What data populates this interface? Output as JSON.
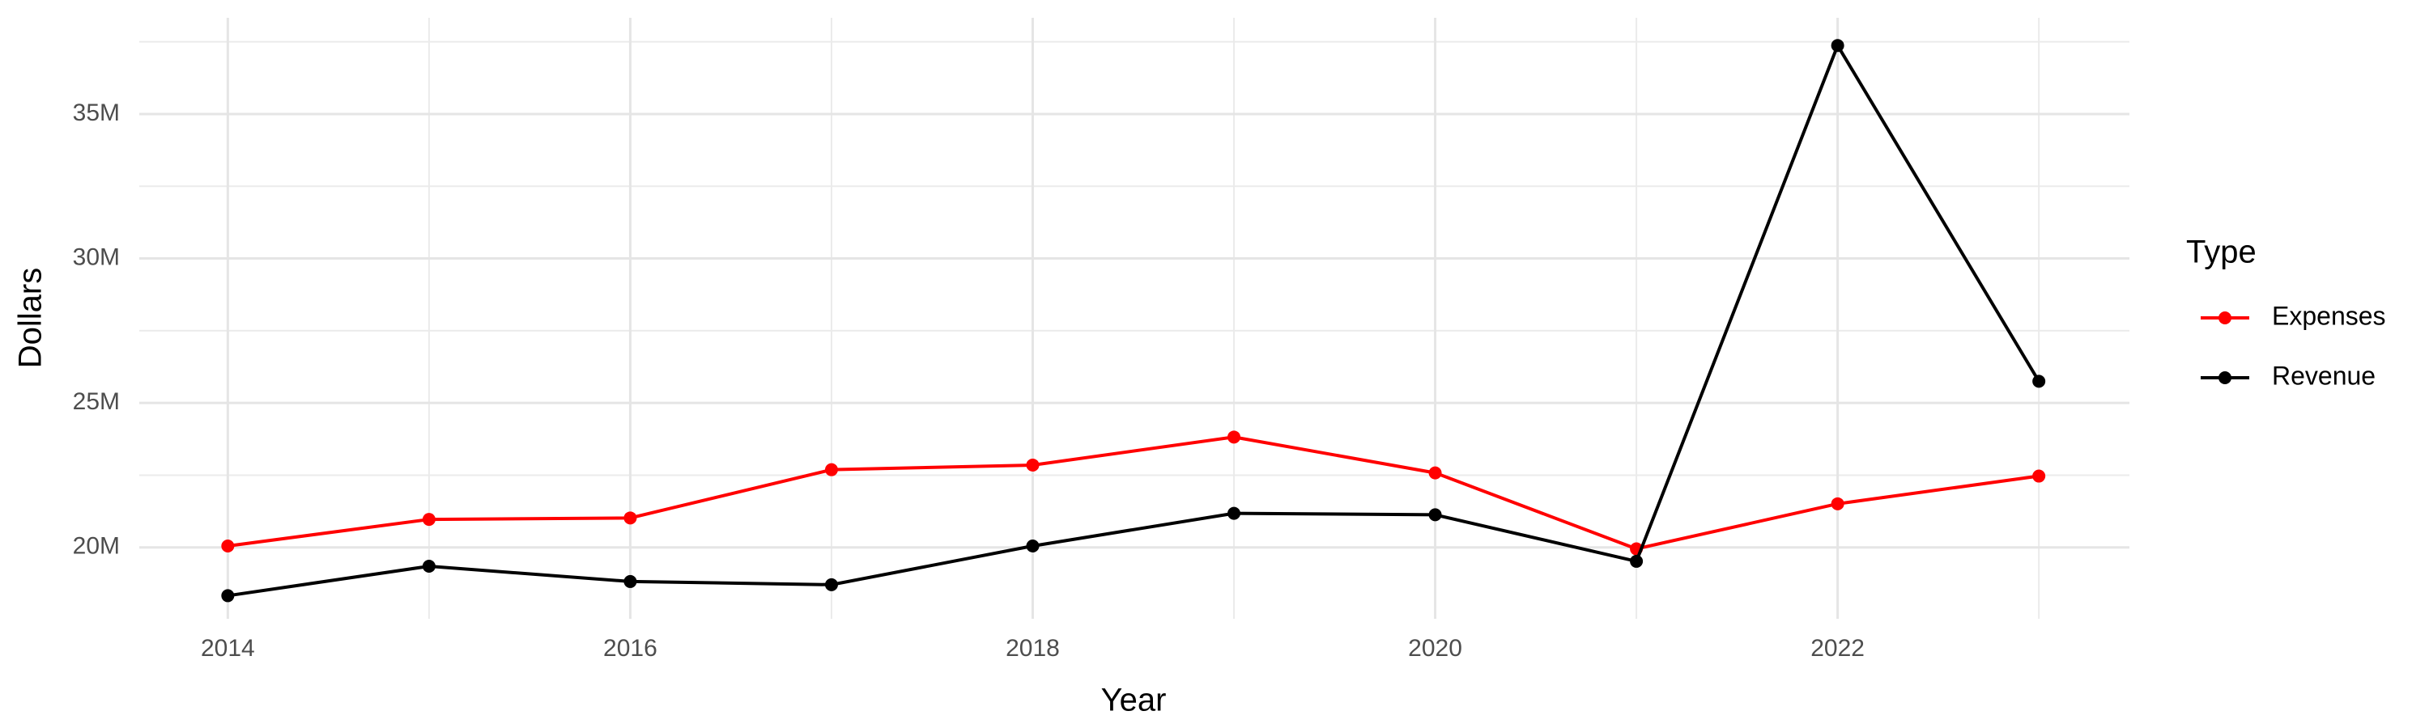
{
  "chart_data": {
    "type": "line",
    "x_label": "Year",
    "y_label": "Dollars",
    "legend_title": "Type",
    "x": [
      2014,
      2015,
      2016,
      2017,
      2018,
      2019,
      2020,
      2021,
      2022,
      2023
    ],
    "series": [
      {
        "name": "Expenses",
        "color": "#ff0000",
        "values": [
          20050000,
          20970000,
          21020000,
          22690000,
          22850000,
          23820000,
          22580000,
          19950000,
          21510000,
          22470000
        ]
      },
      {
        "name": "Revenue",
        "color": "#000000",
        "values": [
          18330000,
          19350000,
          18820000,
          18710000,
          20050000,
          21180000,
          21130000,
          19520000,
          37370000,
          25750000
        ]
      }
    ],
    "xlim": [
      2013.56,
      2023.45
    ],
    "xticks": [
      2014,
      2016,
      2018,
      2020,
      2022
    ],
    "ylim": [
      17530000,
      38330000
    ],
    "yticks": [
      {
        "value": 20000000,
        "label": "20M"
      },
      {
        "value": 25000000,
        "label": "25M"
      },
      {
        "value": 30000000,
        "label": "30M"
      },
      {
        "value": 35000000,
        "label": "35M"
      }
    ],
    "grid": true,
    "legend": "right"
  }
}
